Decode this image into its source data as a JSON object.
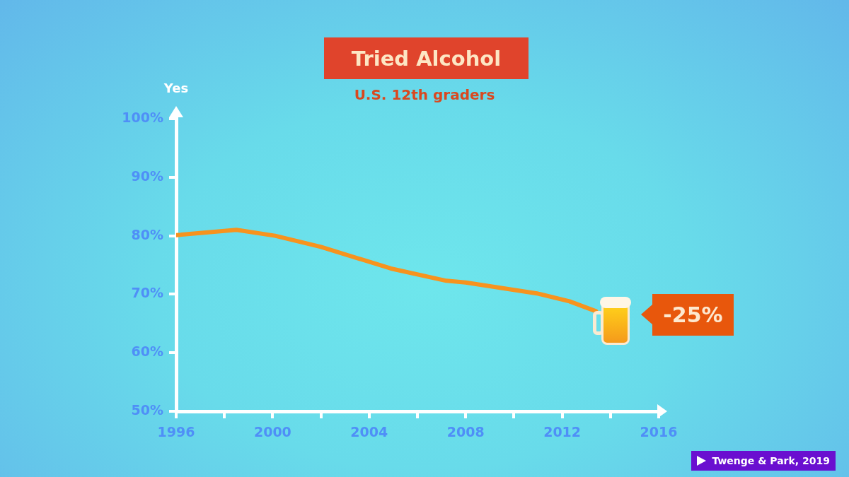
{
  "chart_data": {
    "type": "line",
    "title": "Tried Alcohol",
    "subtitle": "U.S. 12th graders",
    "ylabel": "Yes",
    "x": [
      1996,
      1998.5,
      2000.1,
      2002,
      2004.9,
      2007.2,
      2008,
      2011,
      2012.3,
      2013.4
    ],
    "series": [
      {
        "color": "#f7931e",
        "values": [
          80.1,
          81.0,
          80.0,
          78.1,
          74.4,
          72.3,
          72.0,
          70.1,
          68.8,
          67.1
        ]
      }
    ],
    "xlim": [
      1996,
      2016
    ],
    "xticks": [
      1996,
      {
        "value": 1998,
        "label": null
      },
      2000,
      {
        "value": 2002,
        "label": null
      },
      2004,
      {
        "value": 2006,
        "label": null
      },
      2008,
      {
        "value": 2010,
        "label": null
      },
      2012,
      {
        "value": 2014,
        "label": null
      },
      2016
    ],
    "ylim": [
      50,
      100
    ],
    "yticks": [
      {
        "value": 50,
        "label": "50%"
      },
      {
        "value": 60,
        "label": "60%"
      },
      {
        "value": 70,
        "label": "70%"
      },
      {
        "value": 80,
        "label": "80%"
      },
      {
        "value": 90,
        "label": "90%"
      },
      {
        "value": 100,
        "label": "100%"
      }
    ],
    "grid": false,
    "legend": false,
    "marker": "none",
    "line_style": "solid",
    "annotations": [
      "-25%",
      "Twenge & Park, 2019"
    ]
  }
}
